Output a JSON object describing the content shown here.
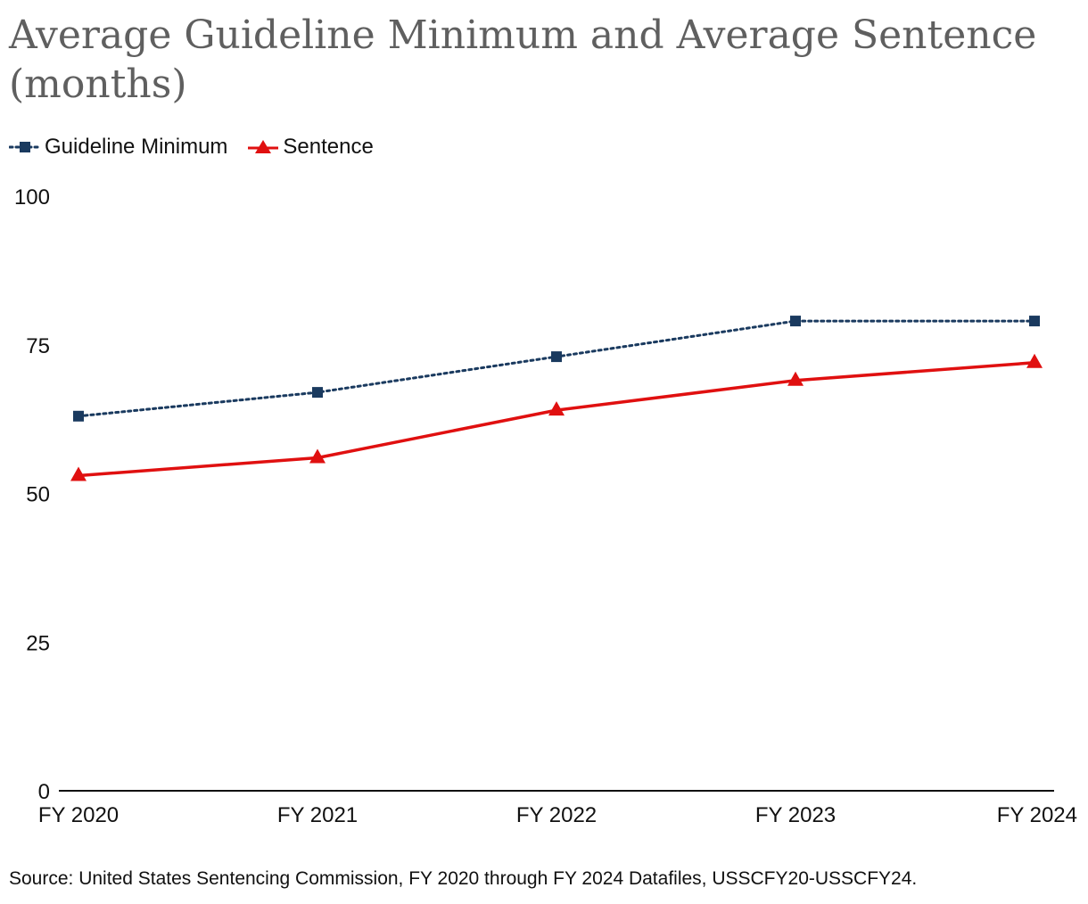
{
  "chart_data": {
    "type": "line",
    "title": "Average Guideline Minimum and Average Sentence (months)",
    "categories": [
      "FY 2020",
      "FY 2021",
      "FY 2022",
      "FY 2023",
      "FY 2024"
    ],
    "series": [
      {
        "name": "Guideline Minimum",
        "values": [
          63,
          67,
          73,
          79,
          79
        ],
        "color": "#1a3a5f",
        "line_style": "dotted",
        "marker": "square"
      },
      {
        "name": "Sentence",
        "values": [
          53,
          56,
          64,
          69,
          72
        ],
        "color": "#e01010",
        "line_style": "solid",
        "marker": "triangle"
      }
    ],
    "ylim": [
      0,
      100
    ],
    "yticks": [
      "0",
      "25",
      "50",
      "75",
      "100"
    ],
    "xlabel": "",
    "ylabel": "",
    "grid": false,
    "legend": "top-left"
  },
  "source": "Source: United States Sentencing Commission, FY 2020 through FY 2024 Datafiles, USSCFY20-USSCFY24."
}
